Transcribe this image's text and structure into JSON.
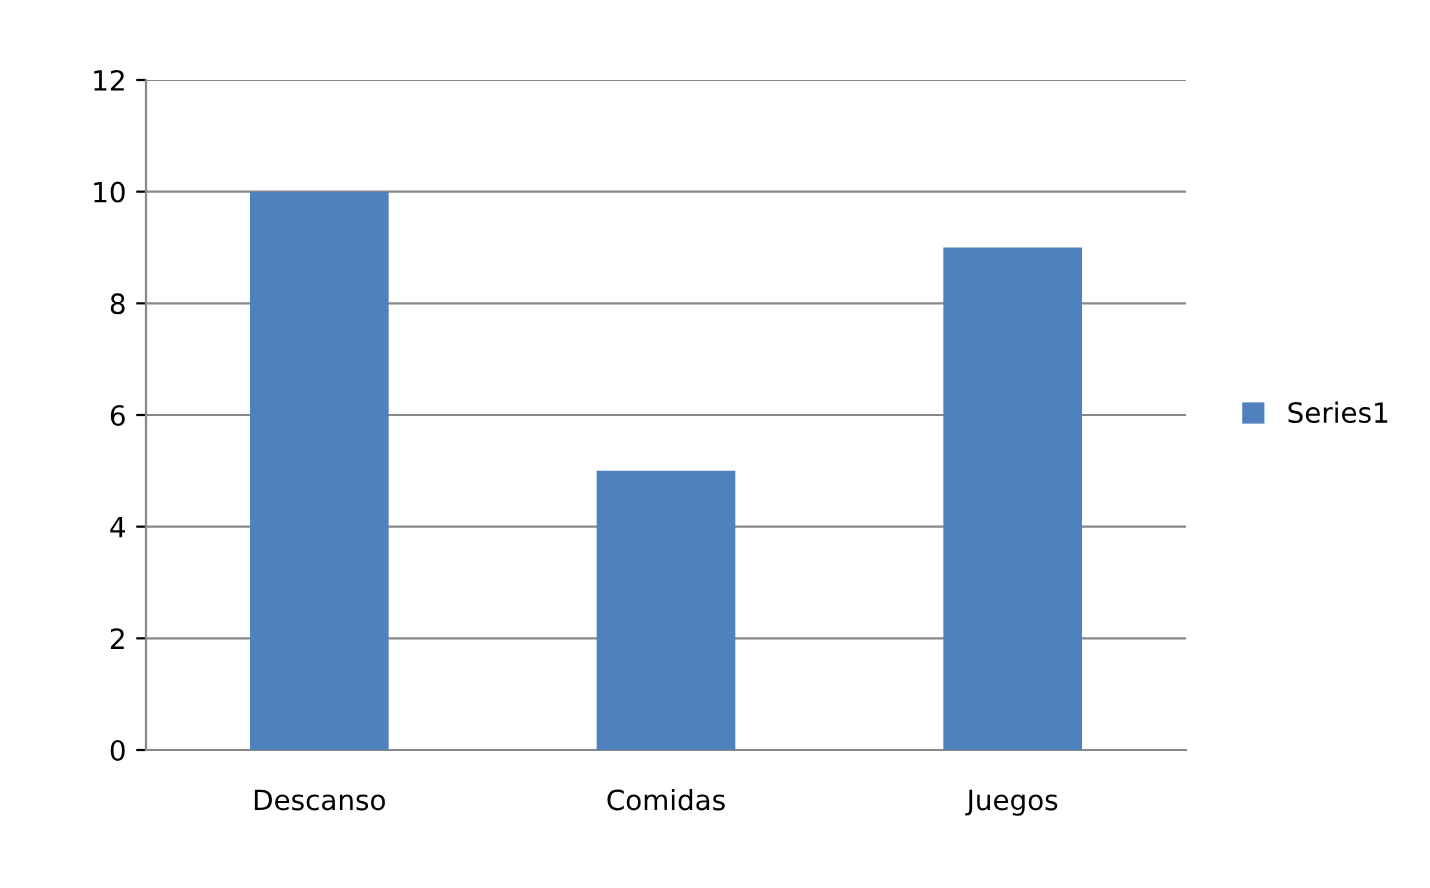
{
  "chart_data": {
    "type": "bar",
    "categories": [
      "Descanso",
      "Comidas",
      "Juegos"
    ],
    "series": [
      {
        "name": "Series1",
        "color": "#4f81bd",
        "values": [
          10,
          5,
          9
        ]
      }
    ],
    "ylim": [
      0,
      12
    ],
    "yticks": [
      0,
      2,
      4,
      6,
      8,
      10,
      12
    ],
    "grid": "y",
    "legend": "right"
  }
}
